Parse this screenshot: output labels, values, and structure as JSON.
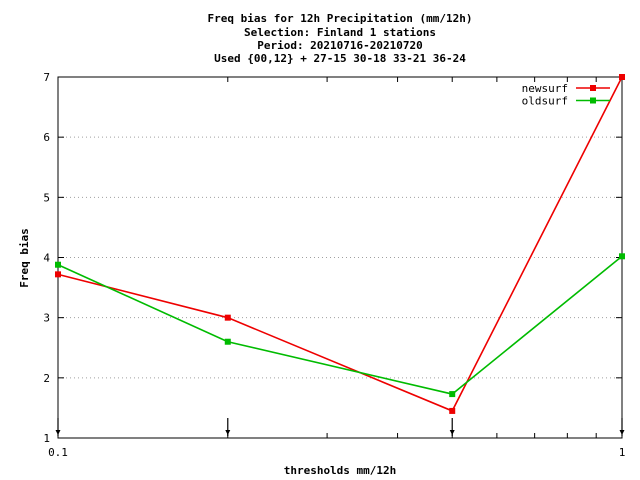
{
  "chart_data": {
    "type": "line",
    "title_lines": [
      "Freq bias  for 12h Precipitation (mm/12h)",
      "Selection: Finland      1 stations",
      "Period: 20210716-20210720",
      "Used {00,12} + 27-15 30-18 33-21 36-24"
    ],
    "xlabel": "thresholds mm/12h",
    "ylabel": "Freq bias",
    "x_scale": "log",
    "xlim": [
      0.1,
      1
    ],
    "ylim": [
      1,
      7
    ],
    "x_tick_labels": [
      "0.1",
      "1"
    ],
    "y_ticks": [
      1,
      2,
      3,
      4,
      5,
      6,
      7
    ],
    "grid": true,
    "legend_position": "top-right",
    "x": [
      0.1,
      0.2,
      0.5,
      1.0
    ],
    "series": [
      {
        "name": "newsurf",
        "color": "#ee0000",
        "values": [
          3.72,
          3.0,
          1.45,
          7.0
        ]
      },
      {
        "name": "oldsurf",
        "color": "#00bb00",
        "values": [
          3.88,
          2.6,
          1.73,
          4.02
        ]
      }
    ]
  }
}
